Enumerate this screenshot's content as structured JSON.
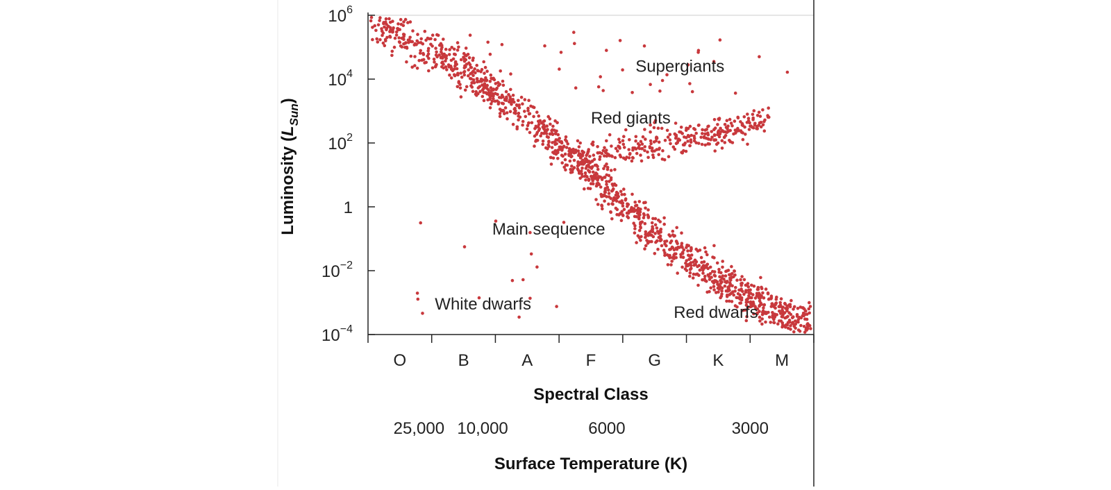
{
  "chart_data": {
    "type": "scatter",
    "title": "",
    "ylabel": {
      "main": "Luminosity (",
      "symbol": "L",
      "subscript": "Sun",
      "close": ")"
    },
    "xlabel": "Spectral Class",
    "x2label": "Surface Temperature (K)",
    "yscale": "log",
    "ylim": [
      0.0001,
      1000000
    ],
    "yticks": [
      {
        "value": 1000000,
        "base": "10",
        "exp": "6"
      },
      {
        "value": 10000,
        "base": "10",
        "exp": "4"
      },
      {
        "value": 100,
        "base": "10",
        "exp": "2"
      },
      {
        "value": 1,
        "base": "1",
        "exp": ""
      },
      {
        "value": 0.01,
        "base": "10",
        "exp": "−2"
      },
      {
        "value": 0.0001,
        "base": "10",
        "exp": "−4"
      }
    ],
    "xlim": [
      0,
      7
    ],
    "spectral_classes": [
      "O",
      "B",
      "A",
      "F",
      "G",
      "K",
      "M"
    ],
    "temperature_ticks": [
      {
        "label": "25,000",
        "x": 0.8
      },
      {
        "label": "10,000",
        "x": 1.8
      },
      {
        "label": "6000",
        "x": 3.75
      },
      {
        "label": "3000",
        "x": 6.0
      }
    ],
    "annotations": [
      {
        "text": "Supergiants",
        "x": 4.2,
        "y": 25000
      },
      {
        "text": "Red giants",
        "x": 3.5,
        "y": 600
      },
      {
        "text": "Main sequence",
        "x": 1.95,
        "y": 0.2
      },
      {
        "text": "White dwarfs",
        "x": 1.05,
        "y": 0.0009
      },
      {
        "text": "Red dwarfs",
        "x": 4.8,
        "y": 0.0005
      }
    ],
    "grid": false,
    "legend": "none",
    "point_color": "#c8383c",
    "populations": [
      {
        "name": "Main sequence",
        "x_range": [
          0,
          7
        ],
        "log_luminosity_at_x0": 5.8,
        "log_luminosity_at_x7": -3.8,
        "count": 1300
      },
      {
        "name": "Red giants",
        "x_range": [
          3.3,
          6.3
        ],
        "log_luminosity_range": [
          1.5,
          2.7
        ],
        "count": 320
      },
      {
        "name": "Supergiants",
        "x_range": [
          1.0,
          6.7
        ],
        "log_luminosity_range": [
          3.5,
          5.6
        ],
        "count": 35
      },
      {
        "name": "White dwarfs",
        "x_range": [
          0.7,
          3.3
        ],
        "log_luminosity_range": [
          -3.5,
          -0.3
        ],
        "count": 16
      }
    ]
  }
}
